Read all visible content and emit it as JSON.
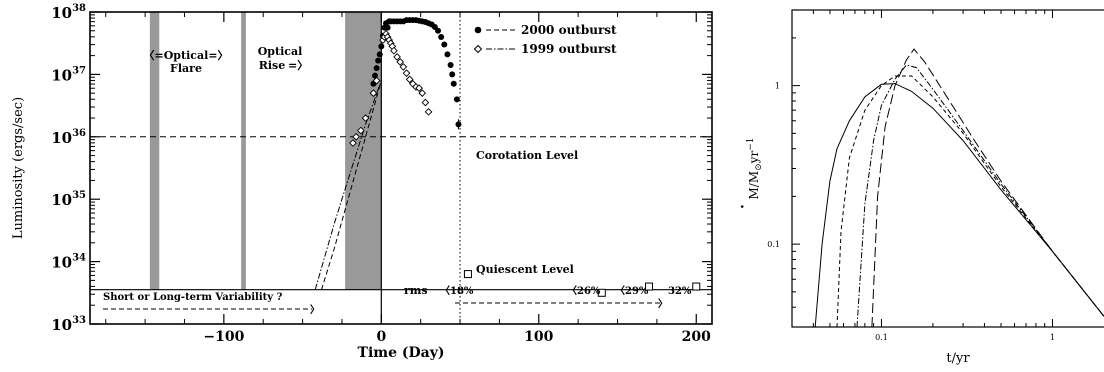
{
  "chart_data": [
    {
      "type": "scatter",
      "xlabel": "Time (Day)",
      "ylabel": "Luminosity (ergs/sec)",
      "xlim": [
        -185,
        210
      ],
      "ylim_log10": [
        33,
        38
      ],
      "x_ticks": [
        {
          "value": -100,
          "label": "−100"
        },
        {
          "value": 0,
          "label": "0"
        },
        {
          "value": 100,
          "label": "100"
        },
        {
          "value": 200,
          "label": "200"
        }
      ],
      "y_ticks": [
        {
          "exp": 33,
          "base": "10",
          "sup": "33"
        },
        {
          "exp": 34,
          "base": "10",
          "sup": "34"
        },
        {
          "exp": 35,
          "base": "10",
          "sup": "35"
        },
        {
          "exp": 36,
          "base": "10",
          "sup": "36"
        },
        {
          "exp": 37,
          "base": "10",
          "sup": "37"
        },
        {
          "exp": 38,
          "base": "10",
          "sup": "38"
        }
      ],
      "legend": [
        {
          "name": "2000 outburst",
          "marker": "filled-circle",
          "line": "dashed"
        },
        {
          "name": "1999 outburst",
          "marker": "open-diamond",
          "line": "dash-dot"
        }
      ],
      "shaded_bands": [
        {
          "x0": -147,
          "x1": -141
        },
        {
          "x0": -89,
          "x1": -86
        },
        {
          "x0": -23,
          "x1": 0
        }
      ],
      "levels": {
        "corotation": {
          "log10": 36.0,
          "label": "Corotation Level"
        },
        "quiescent": {
          "log10": 33.55,
          "label": "Quiescent Level"
        }
      },
      "vertical_lines": [
        {
          "x": 0,
          "style": "solid"
        },
        {
          "x": 50,
          "style": "dotted"
        }
      ],
      "annotations": {
        "optical_flare": {
          "line1": "〈=Optical=〉",
          "line2": "Flare"
        },
        "optical_rise": {
          "line1": "Optical",
          "line2": "Rise",
          "arrow": "=〉"
        },
        "variability": "Short or Long-term Variability ?",
        "rms": "rms",
        "rms_values": [
          "〈18%",
          "〈26%",
          "〈29%",
          "32%"
        ]
      },
      "series": [
        {
          "name": "2000 outburst",
          "points": [
            [
              -5,
              36.85
            ],
            [
              -4,
              36.98
            ],
            [
              -3,
              37.1
            ],
            [
              -2,
              37.22
            ],
            [
              -1,
              37.32
            ],
            [
              0,
              37.45
            ],
            [
              1,
              37.62
            ],
            [
              2,
              37.75
            ],
            [
              3,
              37.82
            ],
            [
              4,
              37.75
            ],
            [
              5,
              37.85
            ],
            [
              6,
              37.85
            ],
            [
              8,
              37.85
            ],
            [
              10,
              37.85
            ],
            [
              12,
              37.85
            ],
            [
              14,
              37.85
            ],
            [
              16,
              37.87
            ],
            [
              18,
              37.87
            ],
            [
              20,
              37.87
            ],
            [
              22,
              37.87
            ],
            [
              24,
              37.86
            ],
            [
              26,
              37.85
            ],
            [
              28,
              37.84
            ],
            [
              30,
              37.82
            ],
            [
              32,
              37.8
            ],
            [
              34,
              37.76
            ],
            [
              36,
              37.7
            ],
            [
              38,
              37.6
            ],
            [
              40,
              37.48
            ],
            [
              42,
              37.32
            ],
            [
              44,
              37.15
            ],
            [
              45,
              37.0
            ],
            [
              46,
              36.85
            ],
            [
              48,
              36.6
            ],
            [
              49,
              36.2
            ]
          ],
          "model_curve": [
            [
              -38,
              33.55
            ],
            [
              -30,
              34.2
            ],
            [
              -20,
              35.1
            ],
            [
              -10,
              36.0
            ],
            [
              0,
              36.9
            ]
          ]
        },
        {
          "name": "1999 outburst",
          "points": [
            [
              1,
              37.55
            ],
            [
              2,
              37.6
            ],
            [
              3,
              37.65
            ],
            [
              4,
              37.6
            ],
            [
              5,
              37.55
            ],
            [
              6,
              37.5
            ],
            [
              7,
              37.45
            ],
            [
              8,
              37.38
            ],
            [
              10,
              37.28
            ],
            [
              12,
              37.2
            ],
            [
              14,
              37.12
            ],
            [
              16,
              37.02
            ],
            [
              18,
              36.92
            ],
            [
              20,
              36.85
            ],
            [
              22,
              36.8
            ],
            [
              24,
              36.78
            ],
            [
              26,
              36.7
            ],
            [
              28,
              36.55
            ],
            [
              30,
              36.4
            ],
            [
              -3,
              36.9
            ],
            [
              -5,
              36.7
            ],
            [
              -10,
              36.3
            ],
            [
              -13,
              36.1
            ],
            [
              -16,
              36.0
            ],
            [
              -18,
              35.9
            ]
          ],
          "model_curve": [
            [
              -42,
              33.55
            ],
            [
              -30,
              34.6
            ],
            [
              -20,
              35.4
            ],
            [
              -10,
              36.2
            ],
            [
              0,
              36.9
            ]
          ]
        },
        {
          "name": "quiescent",
          "marker": "open-square",
          "points": [
            [
              55,
              33.8
            ],
            [
              140,
              33.5
            ],
            [
              170,
              33.6
            ],
            [
              200,
              33.6
            ]
          ]
        }
      ]
    },
    {
      "type": "line",
      "xlabel": "t/yr",
      "ylabel_main": "M/M",
      "ylabel_sub": "⊙",
      "ylabel_tail": "yr",
      "ylabel_exp": "−1",
      "ylabel_dot": "·",
      "xscale": "log",
      "yscale": "log",
      "xlim": [
        0.03,
        2.0
      ],
      "ylim": [
        0.03,
        3.0
      ],
      "x_ticks": [
        {
          "value": 0.1,
          "label": "0.1"
        },
        {
          "value": 1,
          "label": "1"
        }
      ],
      "y_ticks": [
        {
          "value": 0.1,
          "label": "0.1"
        },
        {
          "value": 1,
          "label": "1"
        }
      ],
      "series": [
        {
          "style": "solid",
          "values": [
            [
              0.041,
              0.03
            ],
            [
              0.045,
              0.1
            ],
            [
              0.05,
              0.25
            ],
            [
              0.055,
              0.4
            ],
            [
              0.065,
              0.6
            ],
            [
              0.08,
              0.85
            ],
            [
              0.1,
              1.02
            ],
            [
              0.12,
              1.03
            ],
            [
              0.15,
              0.92
            ],
            [
              0.2,
              0.72
            ],
            [
              0.3,
              0.45
            ],
            [
              0.5,
              0.22
            ],
            [
              1.0,
              0.09
            ],
            [
              2.0,
              0.035
            ]
          ]
        },
        {
          "style": "dashed",
          "values": [
            [
              0.055,
              0.03
            ],
            [
              0.058,
              0.12
            ],
            [
              0.065,
              0.35
            ],
            [
              0.08,
              0.7
            ],
            [
              0.1,
              1.0
            ],
            [
              0.12,
              1.15
            ],
            [
              0.15,
              1.15
            ],
            [
              0.2,
              0.85
            ],
            [
              0.3,
              0.5
            ],
            [
              0.5,
              0.23
            ],
            [
              1.0,
              0.09
            ],
            [
              2.0,
              0.035
            ]
          ]
        },
        {
          "style": "dash-dot",
          "values": [
            [
              0.072,
              0.03
            ],
            [
              0.08,
              0.18
            ],
            [
              0.09,
              0.45
            ],
            [
              0.1,
              0.75
            ],
            [
              0.12,
              1.1
            ],
            [
              0.14,
              1.35
            ],
            [
              0.16,
              1.3
            ],
            [
              0.2,
              0.95
            ],
            [
              0.3,
              0.52
            ],
            [
              0.5,
              0.24
            ],
            [
              1.0,
              0.09
            ],
            [
              2.0,
              0.035
            ]
          ]
        },
        {
          "style": "long-dash",
          "values": [
            [
              0.088,
              0.03
            ],
            [
              0.095,
              0.2
            ],
            [
              0.105,
              0.55
            ],
            [
              0.12,
              1.0
            ],
            [
              0.14,
              1.45
            ],
            [
              0.155,
              1.7
            ],
            [
              0.18,
              1.4
            ],
            [
              0.25,
              0.8
            ],
            [
              0.35,
              0.45
            ],
            [
              0.5,
              0.25
            ],
            [
              1.0,
              0.09
            ],
            [
              2.0,
              0.035
            ]
          ]
        }
      ]
    }
  ]
}
